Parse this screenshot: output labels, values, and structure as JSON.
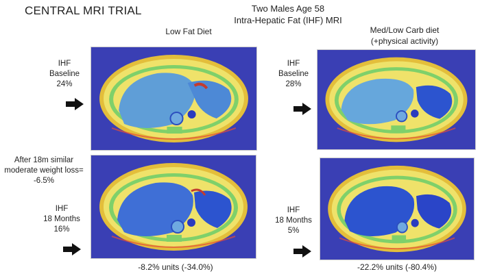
{
  "title": "CENTRAL MRI TRIAL",
  "header": {
    "line1": "Two Males Age 58",
    "line2": "Intra-Hepatic Fat (IHF) MRI"
  },
  "columns": {
    "left": {
      "label": "Low Fat Diet",
      "change": "-8.2% units (-34.0%)"
    },
    "right": {
      "label_line1": "Med/Low Carb diet",
      "label_line2": "(+physical activity)",
      "change": "-22.2% units (-80.4%)"
    }
  },
  "labels": {
    "left_baseline": [
      "IHF",
      "Baseline",
      "24%"
    ],
    "right_baseline": [
      "IHF",
      "Baseline",
      "28%"
    ],
    "weight_loss": [
      "After 18m similar",
      "moderate weight loss=",
      "-6.5%"
    ],
    "left_18m": [
      "IHF",
      "18 Months",
      "16%"
    ],
    "right_18m": [
      "IHF",
      "18 Months",
      "5%"
    ]
  },
  "icons": {
    "arrow": "arrow-right-icon"
  },
  "colors": {
    "scan_bg": "#3a3fb4",
    "fat": "#e9dc59",
    "liver": "#5f9ed7",
    "liver_low": "#2c54cf",
    "arrow": "#111111"
  }
}
